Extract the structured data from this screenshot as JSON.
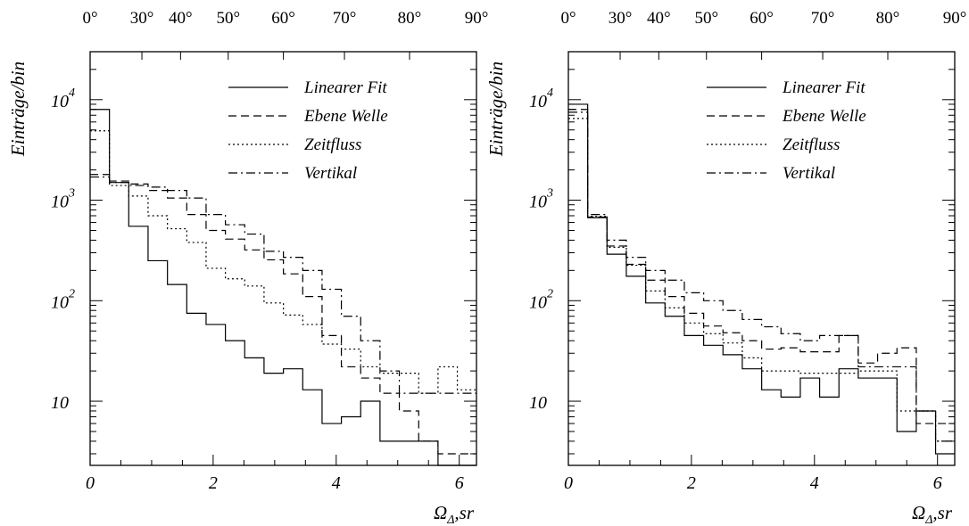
{
  "chart_data": [
    {
      "type": "line",
      "step": "histogram",
      "ylabel": "Einträge/bin",
      "xlabel_main": "Ω",
      "xlabel_sub": "Δ",
      "xlabel_tail": ",sr",
      "xlim": [
        0,
        6.28
      ],
      "ylim": [
        2.3,
        30000
      ],
      "log_y": true,
      "x_ticks": [
        "0",
        "2",
        "4",
        "6"
      ],
      "x_tick_values": [
        0,
        2,
        4,
        6
      ],
      "y_ticks": [
        {
          "value": 10,
          "base": "10",
          "exp": ""
        },
        {
          "value": 100,
          "base": "10",
          "exp": "2"
        },
        {
          "value": 1000,
          "base": "10",
          "exp": "3"
        },
        {
          "value": 10000,
          "base": "10",
          "exp": "4"
        }
      ],
      "top_axis": {
        "labels": [
          "0°",
          "30°",
          "40°",
          "50°",
          "60°",
          "70°",
          "80°",
          "90°"
        ],
        "angles_deg": [
          0,
          30,
          40,
          50,
          60,
          70,
          80,
          90
        ]
      },
      "legend_position": "top-right",
      "bin_edges": [
        0,
        0.314,
        0.628,
        0.942,
        1.257,
        1.571,
        1.885,
        2.199,
        2.513,
        2.827,
        3.142,
        3.456,
        3.77,
        4.084,
        4.398,
        4.712,
        5.026,
        5.341,
        5.655,
        5.969,
        6.283
      ],
      "series": [
        {
          "name": "Linearer Fit",
          "style": "solid",
          "values": [
            8000,
            1500,
            550,
            250,
            145,
            75,
            58,
            40,
            27,
            19,
            21,
            13,
            6,
            7,
            10,
            4,
            4,
            4,
            2,
            2
          ]
        },
        {
          "name": "Ebene Welle",
          "style": "dashed",
          "values": [
            1800,
            1550,
            1450,
            1250,
            1050,
            720,
            500,
            410,
            320,
            255,
            185,
            110,
            45,
            22,
            17,
            12,
            8,
            4,
            3,
            3
          ]
        },
        {
          "name": "Zeitfluss",
          "style": "dotted",
          "values": [
            4900,
            1400,
            1100,
            700,
            520,
            380,
            210,
            165,
            140,
            95,
            72,
            58,
            37,
            33,
            22,
            19,
            19,
            12,
            22,
            13
          ]
        },
        {
          "name": "Vertikal",
          "style": "dashdot",
          "values": [
            1700,
            1500,
            1400,
            1350,
            1250,
            1050,
            720,
            570,
            460,
            310,
            270,
            200,
            130,
            70,
            40,
            20,
            12,
            12,
            12,
            12
          ]
        }
      ]
    },
    {
      "type": "line",
      "step": "histogram",
      "ylabel": "Einträge/bin",
      "xlabel_main": "Ω",
      "xlabel_sub": "Δ",
      "xlabel_tail": ",sr",
      "xlim": [
        0,
        6.28
      ],
      "ylim": [
        2.3,
        30000
      ],
      "log_y": true,
      "x_ticks": [
        "0",
        "2",
        "4",
        "6"
      ],
      "x_tick_values": [
        0,
        2,
        4,
        6
      ],
      "y_ticks": [
        {
          "value": 10,
          "base": "10",
          "exp": ""
        },
        {
          "value": 100,
          "base": "10",
          "exp": "2"
        },
        {
          "value": 1000,
          "base": "10",
          "exp": "3"
        },
        {
          "value": 10000,
          "base": "10",
          "exp": "4"
        }
      ],
      "top_axis": {
        "labels": [
          "0°",
          "30°",
          "40°",
          "50°",
          "60°",
          "70°",
          "80°",
          "90°"
        ],
        "angles_deg": [
          0,
          30,
          40,
          50,
          60,
          70,
          80,
          90
        ]
      },
      "legend_position": "top-right",
      "bin_edges": [
        0,
        0.314,
        0.628,
        0.942,
        1.257,
        1.571,
        1.885,
        2.199,
        2.513,
        2.827,
        3.142,
        3.456,
        3.77,
        4.084,
        4.398,
        4.712,
        5.026,
        5.341,
        5.655,
        5.969,
        6.283
      ],
      "series": [
        {
          "name": "Linearer Fit",
          "style": "solid",
          "values": [
            9000,
            670,
            290,
            175,
            95,
            70,
            45,
            36,
            29,
            21,
            13,
            11,
            17,
            11,
            21,
            17,
            17,
            5,
            8,
            3
          ]
        },
        {
          "name": "Ebene Welle",
          "style": "dashed",
          "values": [
            8000,
            680,
            350,
            230,
            160,
            110,
            75,
            56,
            48,
            40,
            33,
            34,
            31,
            31,
            45,
            24,
            30,
            34,
            6,
            6
          ]
        },
        {
          "name": "Zeitfluss",
          "style": "dotted",
          "values": [
            6500,
            690,
            340,
            225,
            125,
            85,
            60,
            47,
            38,
            27,
            20,
            20,
            19,
            19,
            19,
            20,
            20,
            8,
            8,
            4
          ]
        },
        {
          "name": "Vertikal",
          "style": "dashdot",
          "values": [
            7500,
            720,
            400,
            270,
            200,
            160,
            120,
            100,
            80,
            65,
            55,
            47,
            40,
            45,
            45,
            22,
            22,
            22,
            8,
            4
          ]
        }
      ]
    }
  ]
}
